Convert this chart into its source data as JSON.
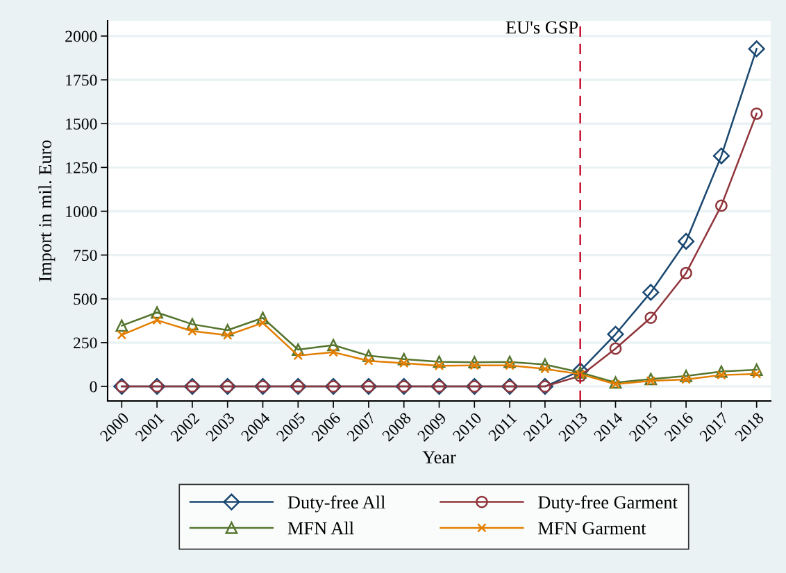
{
  "chart_data": {
    "type": "line",
    "xlabel": "Year",
    "ylabel": "Import in mil. Euro",
    "x": [
      2000,
      2001,
      2002,
      2003,
      2004,
      2005,
      2006,
      2007,
      2008,
      2009,
      2010,
      2011,
      2012,
      2013,
      2014,
      2015,
      2016,
      2017,
      2018
    ],
    "series": [
      {
        "name": "Duty-free All",
        "color": "#1a476f",
        "marker": "diamond",
        "values": [
          0,
          0,
          0,
          0,
          0,
          0,
          0,
          0,
          0,
          0,
          0,
          0,
          0,
          89,
          298,
          537,
          828,
          1316,
          1927
        ]
      },
      {
        "name": "Duty-free Garment",
        "color": "#90353b",
        "marker": "circle",
        "values": [
          0,
          0,
          0,
          0,
          0,
          0,
          0,
          0,
          0,
          0,
          0,
          0,
          0,
          60,
          216,
          392,
          647,
          1032,
          1557
        ]
      },
      {
        "name": "MFN All",
        "color": "#55752f",
        "marker": "triangle",
        "values": [
          347,
          422,
          355,
          321,
          391,
          210,
          236,
          175,
          156,
          141,
          138,
          140,
          125,
          80,
          22,
          42,
          60,
          85,
          95
        ]
      },
      {
        "name": "MFN Garment",
        "color": "#e37e00",
        "marker": "cross",
        "values": [
          294,
          378,
          316,
          292,
          363,
          176,
          195,
          146,
          133,
          118,
          120,
          120,
          100,
          70,
          13,
          32,
          40,
          65,
          71
        ]
      }
    ],
    "xlim": [
      1999.6,
      2018.4
    ],
    "xticks": [
      2000,
      2001,
      2002,
      2003,
      2004,
      2005,
      2006,
      2007,
      2008,
      2009,
      2010,
      2011,
      2012,
      2013,
      2014,
      2015,
      2016,
      2017,
      2018
    ],
    "ylim": [
      -83,
      2087
    ],
    "yticks": [
      0,
      250,
      500,
      750,
      1000,
      1250,
      1500,
      1750,
      2000
    ],
    "ref_lines": [
      {
        "axis": "x",
        "value": 2013,
        "label": "EU's GSP",
        "color": "#c8102e",
        "line_style": "dashed"
      }
    ],
    "grid": "y",
    "legend": "bottom",
    "line_style": "solid"
  }
}
